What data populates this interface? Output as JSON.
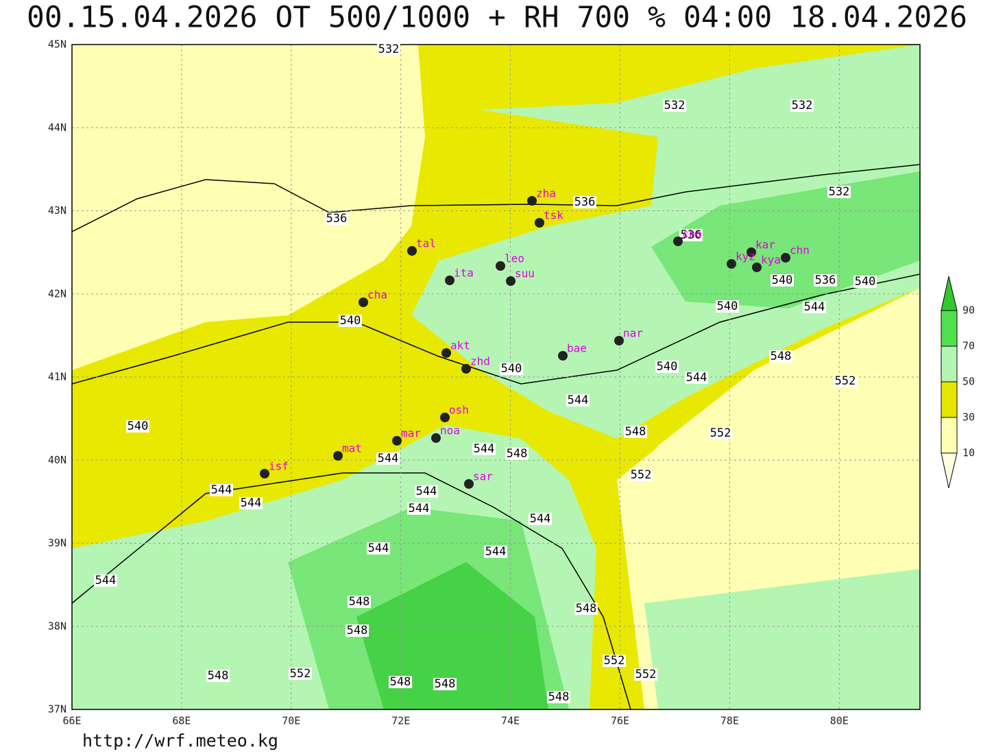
{
  "title": "00.15.04.2026 OT 500/1000 + RH 700 % 04:00 18.04.2026",
  "map": {
    "lon_labels": [
      "66E",
      "68E",
      "70E",
      "72E",
      "74E",
      "76E",
      "78E",
      "80E"
    ],
    "lat_labels": [
      "37N",
      "38N",
      "39N",
      "40N",
      "41N",
      "42N",
      "43N",
      "44N",
      "45N"
    ],
    "stations": [
      "zha",
      "tsk",
      "tal",
      "leo",
      "ita",
      "suu",
      "cha",
      "cho",
      "kar",
      "kyz",
      "kya",
      "chn",
      "nar",
      "bae",
      "akt",
      "zhd",
      "osh",
      "mar",
      "noa",
      "isf",
      "mat",
      "sar"
    ],
    "contour_labels": [
      532,
      532,
      532,
      536,
      536,
      532,
      536,
      540,
      536,
      540,
      540,
      544,
      540,
      548,
      540,
      540,
      544,
      552,
      544,
      540,
      548,
      552,
      544,
      548,
      544,
      552,
      544,
      544,
      544,
      544,
      544,
      544,
      544,
      544,
      548,
      548,
      548,
      552,
      552,
      548,
      552,
      548,
      548,
      548
    ]
  },
  "legend": {
    "levels": [
      10,
      30,
      50,
      70,
      90
    ]
  },
  "footer": "http://wrf.meteo.kg"
}
